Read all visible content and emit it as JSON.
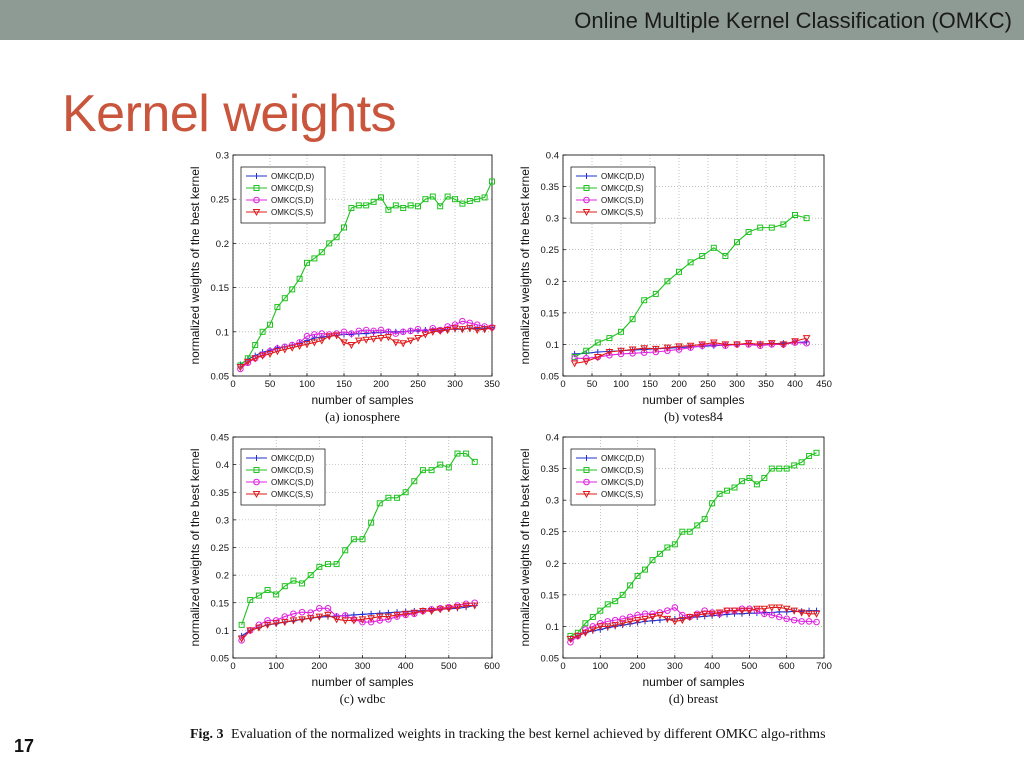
{
  "header": {
    "title": "Online Multiple Kernel Classification (OMKC)"
  },
  "slide": {
    "title": "Kernel weights",
    "page_number": "17"
  },
  "caption": {
    "label": "Fig. 3",
    "text": "Evaluation of the normalized weights in tracking the best kernel achieved by different OMKC algo-rithms"
  },
  "colors": {
    "topbar": "#8e9b94",
    "title": "#c9553d",
    "dd": "#1f2fd0",
    "ds": "#1fc21f",
    "sd": "#e020e0",
    "ss": "#e01a1a"
  },
  "chart_data": [
    {
      "type": "line",
      "subcaption": "(a) ionosphere",
      "xlabel": "number of samples",
      "ylabel": "normalized weights of the best kernel",
      "xlim": [
        0,
        350
      ],
      "ylim": [
        0.05,
        0.3
      ],
      "xticks": [
        0,
        50,
        100,
        150,
        200,
        250,
        300,
        350
      ],
      "yticks": [
        0.05,
        0.1,
        0.15,
        0.2,
        0.25,
        0.3
      ],
      "ytick_labels": [
        "0.05",
        "0.1",
        "0.15",
        "0.2",
        "0.25",
        "0.3"
      ],
      "legend": [
        "OMKC(D,D)",
        "OMKC(D,S)",
        "OMKC(S,D)",
        "OMKC(S,S)"
      ],
      "legend_position": "top-left",
      "x": [
        10,
        20,
        30,
        40,
        50,
        60,
        70,
        80,
        90,
        100,
        110,
        120,
        130,
        140,
        150,
        160,
        170,
        180,
        190,
        200,
        210,
        220,
        230,
        240,
        250,
        260,
        270,
        280,
        290,
        300,
        310,
        320,
        330,
        340,
        350
      ],
      "series": [
        {
          "name": "OMKC(D,D)",
          "values": [
            0.063,
            0.069,
            0.073,
            0.077,
            0.079,
            0.082,
            0.083,
            0.085,
            0.087,
            0.09,
            0.093,
            0.094,
            0.095,
            0.096,
            0.097,
            0.097,
            0.098,
            0.098,
            0.099,
            0.099,
            0.1,
            0.1,
            0.1,
            0.101,
            0.101,
            0.102,
            0.102,
            0.102,
            0.103,
            0.103,
            0.103,
            0.104,
            0.104,
            0.104,
            0.105
          ]
        },
        {
          "name": "OMKC(D,S)",
          "values": [
            0.062,
            0.07,
            0.085,
            0.1,
            0.108,
            0.128,
            0.138,
            0.148,
            0.16,
            0.178,
            0.183,
            0.19,
            0.2,
            0.207,
            0.218,
            0.24,
            0.243,
            0.243,
            0.247,
            0.252,
            0.238,
            0.243,
            0.24,
            0.243,
            0.242,
            0.25,
            0.253,
            0.242,
            0.253,
            0.25,
            0.245,
            0.248,
            0.25,
            0.252,
            0.27
          ]
        },
        {
          "name": "OMKC(S,D)",
          "values": [
            0.058,
            0.065,
            0.07,
            0.074,
            0.078,
            0.081,
            0.083,
            0.085,
            0.088,
            0.095,
            0.097,
            0.098,
            0.097,
            0.098,
            0.1,
            0.098,
            0.101,
            0.102,
            0.101,
            0.102,
            0.1,
            0.098,
            0.1,
            0.101,
            0.103,
            0.1,
            0.104,
            0.102,
            0.106,
            0.108,
            0.112,
            0.11,
            0.108,
            0.106,
            0.105
          ]
        },
        {
          "name": "OMKC(S,S)",
          "values": [
            0.06,
            0.066,
            0.07,
            0.073,
            0.075,
            0.078,
            0.08,
            0.082,
            0.084,
            0.086,
            0.088,
            0.09,
            0.095,
            0.096,
            0.088,
            0.085,
            0.09,
            0.091,
            0.092,
            0.093,
            0.094,
            0.088,
            0.087,
            0.09,
            0.093,
            0.097,
            0.1,
            0.101,
            0.102,
            0.104,
            0.103,
            0.104,
            0.102,
            0.103,
            0.104
          ]
        }
      ]
    },
    {
      "type": "line",
      "subcaption": "(b) votes84",
      "xlabel": "number of samples",
      "ylabel": "normalized weights of the best kernel",
      "xlim": [
        0,
        450
      ],
      "ylim": [
        0.05,
        0.4
      ],
      "xticks": [
        0,
        50,
        100,
        150,
        200,
        250,
        300,
        350,
        400,
        450
      ],
      "yticks": [
        0.05,
        0.1,
        0.15,
        0.2,
        0.25,
        0.3,
        0.35,
        0.4
      ],
      "ytick_labels": [
        "0.05",
        "0.1",
        "0.15",
        "0.2",
        "0.25",
        "0.3",
        "0.35",
        "0.4"
      ],
      "legend": [
        "OMKC(D,D)",
        "OMKC(D,S)",
        "OMKC(S,D)",
        "OMKC(S,S)"
      ],
      "legend_position": "top-left",
      "x": [
        20,
        40,
        60,
        80,
        100,
        120,
        140,
        160,
        180,
        200,
        220,
        240,
        260,
        280,
        300,
        320,
        340,
        360,
        380,
        400,
        420
      ],
      "series": [
        {
          "name": "OMKC(D,D)",
          "values": [
            0.085,
            0.086,
            0.088,
            0.089,
            0.09,
            0.091,
            0.092,
            0.093,
            0.094,
            0.095,
            0.096,
            0.097,
            0.098,
            0.099,
            0.1,
            0.1,
            0.101,
            0.101,
            0.102,
            0.103,
            0.104
          ]
        },
        {
          "name": "OMKC(D,S)",
          "values": [
            0.08,
            0.09,
            0.103,
            0.11,
            0.12,
            0.14,
            0.17,
            0.18,
            0.2,
            0.215,
            0.23,
            0.24,
            0.253,
            0.24,
            0.262,
            0.278,
            0.285,
            0.285,
            0.29,
            0.305,
            0.3
          ]
        },
        {
          "name": "OMKC(S,D)",
          "values": [
            0.078,
            0.078,
            0.08,
            0.083,
            0.085,
            0.086,
            0.087,
            0.088,
            0.09,
            0.092,
            0.095,
            0.098,
            0.1,
            0.098,
            0.1,
            0.1,
            0.098,
            0.1,
            0.1,
            0.103,
            0.102
          ]
        },
        {
          "name": "OMKC(S,S)",
          "values": [
            0.07,
            0.073,
            0.08,
            0.088,
            0.09,
            0.092,
            0.094,
            0.093,
            0.095,
            0.097,
            0.098,
            0.1,
            0.103,
            0.1,
            0.1,
            0.102,
            0.1,
            0.102,
            0.1,
            0.105,
            0.11
          ]
        }
      ]
    },
    {
      "type": "line",
      "subcaption": "(c) wdbc",
      "xlabel": "number of samples",
      "ylabel": "normalized weights of the best kernel",
      "xlim": [
        0,
        600
      ],
      "ylim": [
        0.05,
        0.45
      ],
      "xticks": [
        0,
        100,
        200,
        300,
        400,
        500,
        600
      ],
      "yticks": [
        0.05,
        0.1,
        0.15,
        0.2,
        0.25,
        0.3,
        0.35,
        0.4,
        0.45
      ],
      "ytick_labels": [
        "0.05",
        "0.1",
        "0.15",
        "0.2",
        "0.25",
        "0.3",
        "0.35",
        "0.4",
        "0.45"
      ],
      "legend": [
        "OMKC(D,D)",
        "OMKC(D,S)",
        "OMKC(S,D)",
        "OMKC(S,S)"
      ],
      "legend_position": "top-left",
      "x": [
        20,
        40,
        60,
        80,
        100,
        120,
        140,
        160,
        180,
        200,
        220,
        240,
        260,
        280,
        300,
        320,
        340,
        360,
        380,
        400,
        420,
        440,
        460,
        480,
        500,
        520,
        540,
        560
      ],
      "series": [
        {
          "name": "OMKC(D,D)",
          "values": [
            0.09,
            0.1,
            0.105,
            0.11,
            0.112,
            0.115,
            0.117,
            0.12,
            0.122,
            0.124,
            0.125,
            0.126,
            0.127,
            0.128,
            0.129,
            0.13,
            0.131,
            0.132,
            0.133,
            0.134,
            0.135,
            0.136,
            0.137,
            0.138,
            0.139,
            0.14,
            0.142,
            0.145
          ]
        },
        {
          "name": "OMKC(D,S)",
          "values": [
            0.11,
            0.155,
            0.163,
            0.173,
            0.165,
            0.18,
            0.19,
            0.185,
            0.2,
            0.215,
            0.22,
            0.22,
            0.245,
            0.265,
            0.265,
            0.295,
            0.33,
            0.34,
            0.34,
            0.35,
            0.37,
            0.39,
            0.39,
            0.4,
            0.395,
            0.42,
            0.42,
            0.405
          ]
        },
        {
          "name": "OMKC(S,D)",
          "values": [
            0.082,
            0.1,
            0.11,
            0.118,
            0.118,
            0.125,
            0.13,
            0.133,
            0.132,
            0.14,
            0.14,
            0.125,
            0.127,
            0.12,
            0.115,
            0.115,
            0.118,
            0.12,
            0.125,
            0.128,
            0.13,
            0.135,
            0.138,
            0.14,
            0.142,
            0.145,
            0.148,
            0.15
          ]
        },
        {
          "name": "OMKC(S,S)",
          "values": [
            0.085,
            0.1,
            0.105,
            0.11,
            0.113,
            0.115,
            0.118,
            0.12,
            0.122,
            0.125,
            0.128,
            0.12,
            0.118,
            0.118,
            0.12,
            0.122,
            0.125,
            0.125,
            0.128,
            0.13,
            0.132,
            0.135,
            0.135,
            0.138,
            0.14,
            0.142,
            0.145,
            0.145
          ]
        }
      ]
    },
    {
      "type": "line",
      "subcaption": "(d) breast",
      "xlabel": "number of samples",
      "ylabel": "normalized weights of the best kernel",
      "xlim": [
        0,
        700
      ],
      "ylim": [
        0.05,
        0.4
      ],
      "xticks": [
        0,
        100,
        200,
        300,
        400,
        500,
        600,
        700
      ],
      "yticks": [
        0.05,
        0.1,
        0.15,
        0.2,
        0.25,
        0.3,
        0.35,
        0.4
      ],
      "ytick_labels": [
        "0.05",
        "0.1",
        "0.15",
        "0.2",
        "0.25",
        "0.3",
        "0.35",
        "0.4"
      ],
      "legend": [
        "OMKC(D,D)",
        "OMKC(D,S)",
        "OMKC(S,D)",
        "OMKC(S,S)"
      ],
      "legend_position": "top-left",
      "x": [
        20,
        40,
        60,
        80,
        100,
        120,
        140,
        160,
        180,
        200,
        220,
        240,
        260,
        280,
        300,
        320,
        340,
        360,
        380,
        400,
        420,
        440,
        460,
        480,
        500,
        520,
        540,
        560,
        580,
        600,
        620,
        640,
        660,
        680
      ],
      "series": [
        {
          "name": "OMKC(D,D)",
          "values": [
            0.08,
            0.085,
            0.09,
            0.093,
            0.095,
            0.098,
            0.1,
            0.102,
            0.104,
            0.106,
            0.108,
            0.109,
            0.11,
            0.111,
            0.112,
            0.113,
            0.114,
            0.115,
            0.116,
            0.117,
            0.118,
            0.119,
            0.12,
            0.12,
            0.121,
            0.121,
            0.122,
            0.122,
            0.123,
            0.123,
            0.124,
            0.124,
            0.125,
            0.125
          ]
        },
        {
          "name": "OMKC(D,S)",
          "values": [
            0.085,
            0.09,
            0.105,
            0.115,
            0.125,
            0.135,
            0.14,
            0.15,
            0.165,
            0.18,
            0.19,
            0.205,
            0.215,
            0.225,
            0.23,
            0.25,
            0.25,
            0.26,
            0.27,
            0.295,
            0.31,
            0.315,
            0.32,
            0.33,
            0.335,
            0.325,
            0.335,
            0.35,
            0.35,
            0.35,
            0.355,
            0.36,
            0.37,
            0.375
          ]
        },
        {
          "name": "OMKC(S,D)",
          "values": [
            0.075,
            0.085,
            0.095,
            0.1,
            0.105,
            0.108,
            0.11,
            0.112,
            0.115,
            0.118,
            0.12,
            0.12,
            0.122,
            0.125,
            0.13,
            0.118,
            0.115,
            0.12,
            0.125,
            0.122,
            0.12,
            0.125,
            0.125,
            0.128,
            0.128,
            0.125,
            0.12,
            0.118,
            0.115,
            0.112,
            0.11,
            0.108,
            0.108,
            0.107
          ]
        },
        {
          "name": "OMKC(S,S)",
          "values": [
            0.08,
            0.085,
            0.09,
            0.095,
            0.1,
            0.1,
            0.102,
            0.105,
            0.108,
            0.11,
            0.112,
            0.115,
            0.118,
            0.112,
            0.108,
            0.11,
            0.115,
            0.118,
            0.12,
            0.12,
            0.122,
            0.125,
            0.125,
            0.125,
            0.125,
            0.128,
            0.128,
            0.13,
            0.13,
            0.128,
            0.125,
            0.122,
            0.12,
            0.12
          ]
        }
      ]
    }
  ]
}
